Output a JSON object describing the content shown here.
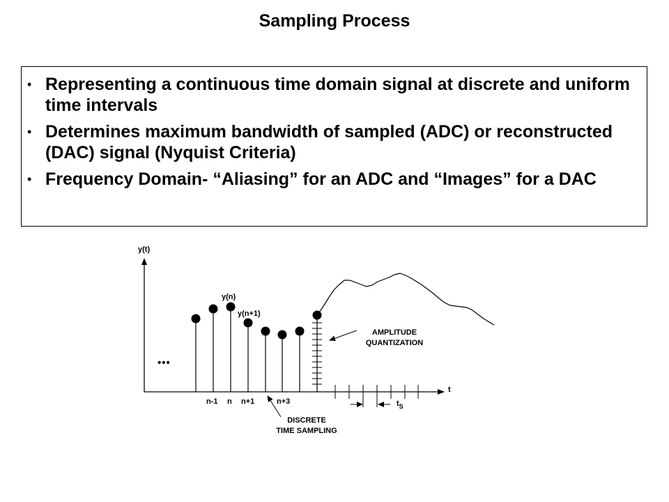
{
  "slide": {
    "title": "Sampling Process",
    "bullets": [
      {
        "text": "Representing a continuous time domain signal at discrete and uniform time intervals"
      },
      {
        "text": "Determines maximum bandwidth of sampled (ADC) or reconstructed (DAC) signal (Nyquist Criteria)"
      },
      {
        "text": "Frequency Domain- “Aliasing” for an ADC and “Images” for a DAC"
      }
    ]
  },
  "diagram": {
    "labels": {
      "y_axis": "y(t)",
      "x_axis": "t",
      "sample_yn": "y(n)",
      "sample_yn1": "y(n+1)",
      "ellipsis": "•••",
      "amplitude_line1": "AMPLITUDE",
      "amplitude_line2": "QUANTIZATION",
      "discrete_line1": "DISCRETE",
      "discrete_line2": "TIME SAMPLING",
      "ts_main": "t",
      "ts_sub": "S"
    },
    "tick_labels": [
      "n-1",
      "n",
      "n+1",
      "n+3"
    ]
  }
}
